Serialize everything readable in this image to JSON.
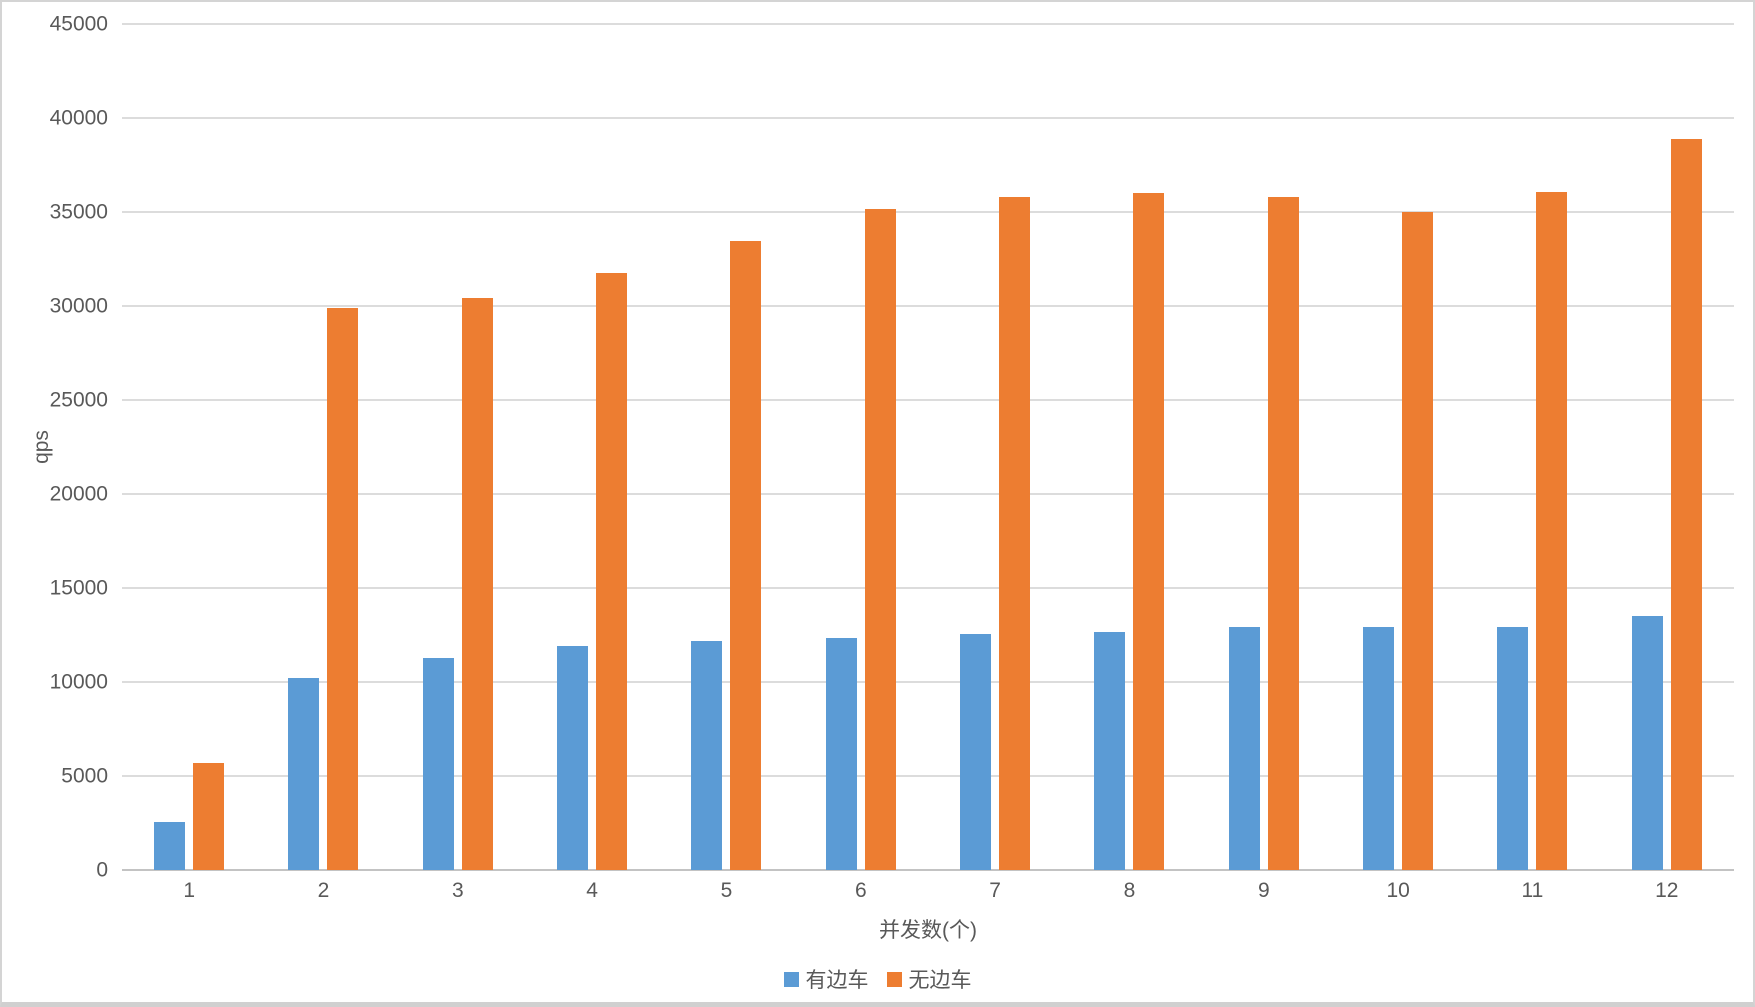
{
  "window": {
    "background": "#ffffff",
    "border_color": "#d4d4d4"
  },
  "chart_data": {
    "type": "bar",
    "title": "",
    "xlabel": "并发数(个)",
    "ylabel": "qps",
    "categories": [
      "1",
      "2",
      "3",
      "4",
      "5",
      "6",
      "7",
      "8",
      "9",
      "10",
      "11",
      "12"
    ],
    "series": [
      {
        "name": "有边车",
        "color": "#5B9BD5",
        "values": [
          2550,
          10200,
          11300,
          11900,
          12200,
          12350,
          12550,
          12650,
          12900,
          12950,
          12900,
          13500
        ]
      },
      {
        "name": "无边车",
        "color": "#ED7D31",
        "values": [
          5700,
          29900,
          30400,
          31750,
          33450,
          35150,
          35800,
          36000,
          35800,
          35000,
          36050,
          38900
        ]
      }
    ],
    "ylim": [
      0,
      45000
    ],
    "ytick_step": 5000,
    "yticks": [
      0,
      5000,
      10000,
      15000,
      20000,
      25000,
      30000,
      35000,
      40000,
      45000
    ],
    "grid": true,
    "gridline_color": "#dcdcdc",
    "axis_line_color": "#c3c3c3",
    "tick_label_color": "#595959",
    "legend_position": "bottom"
  }
}
